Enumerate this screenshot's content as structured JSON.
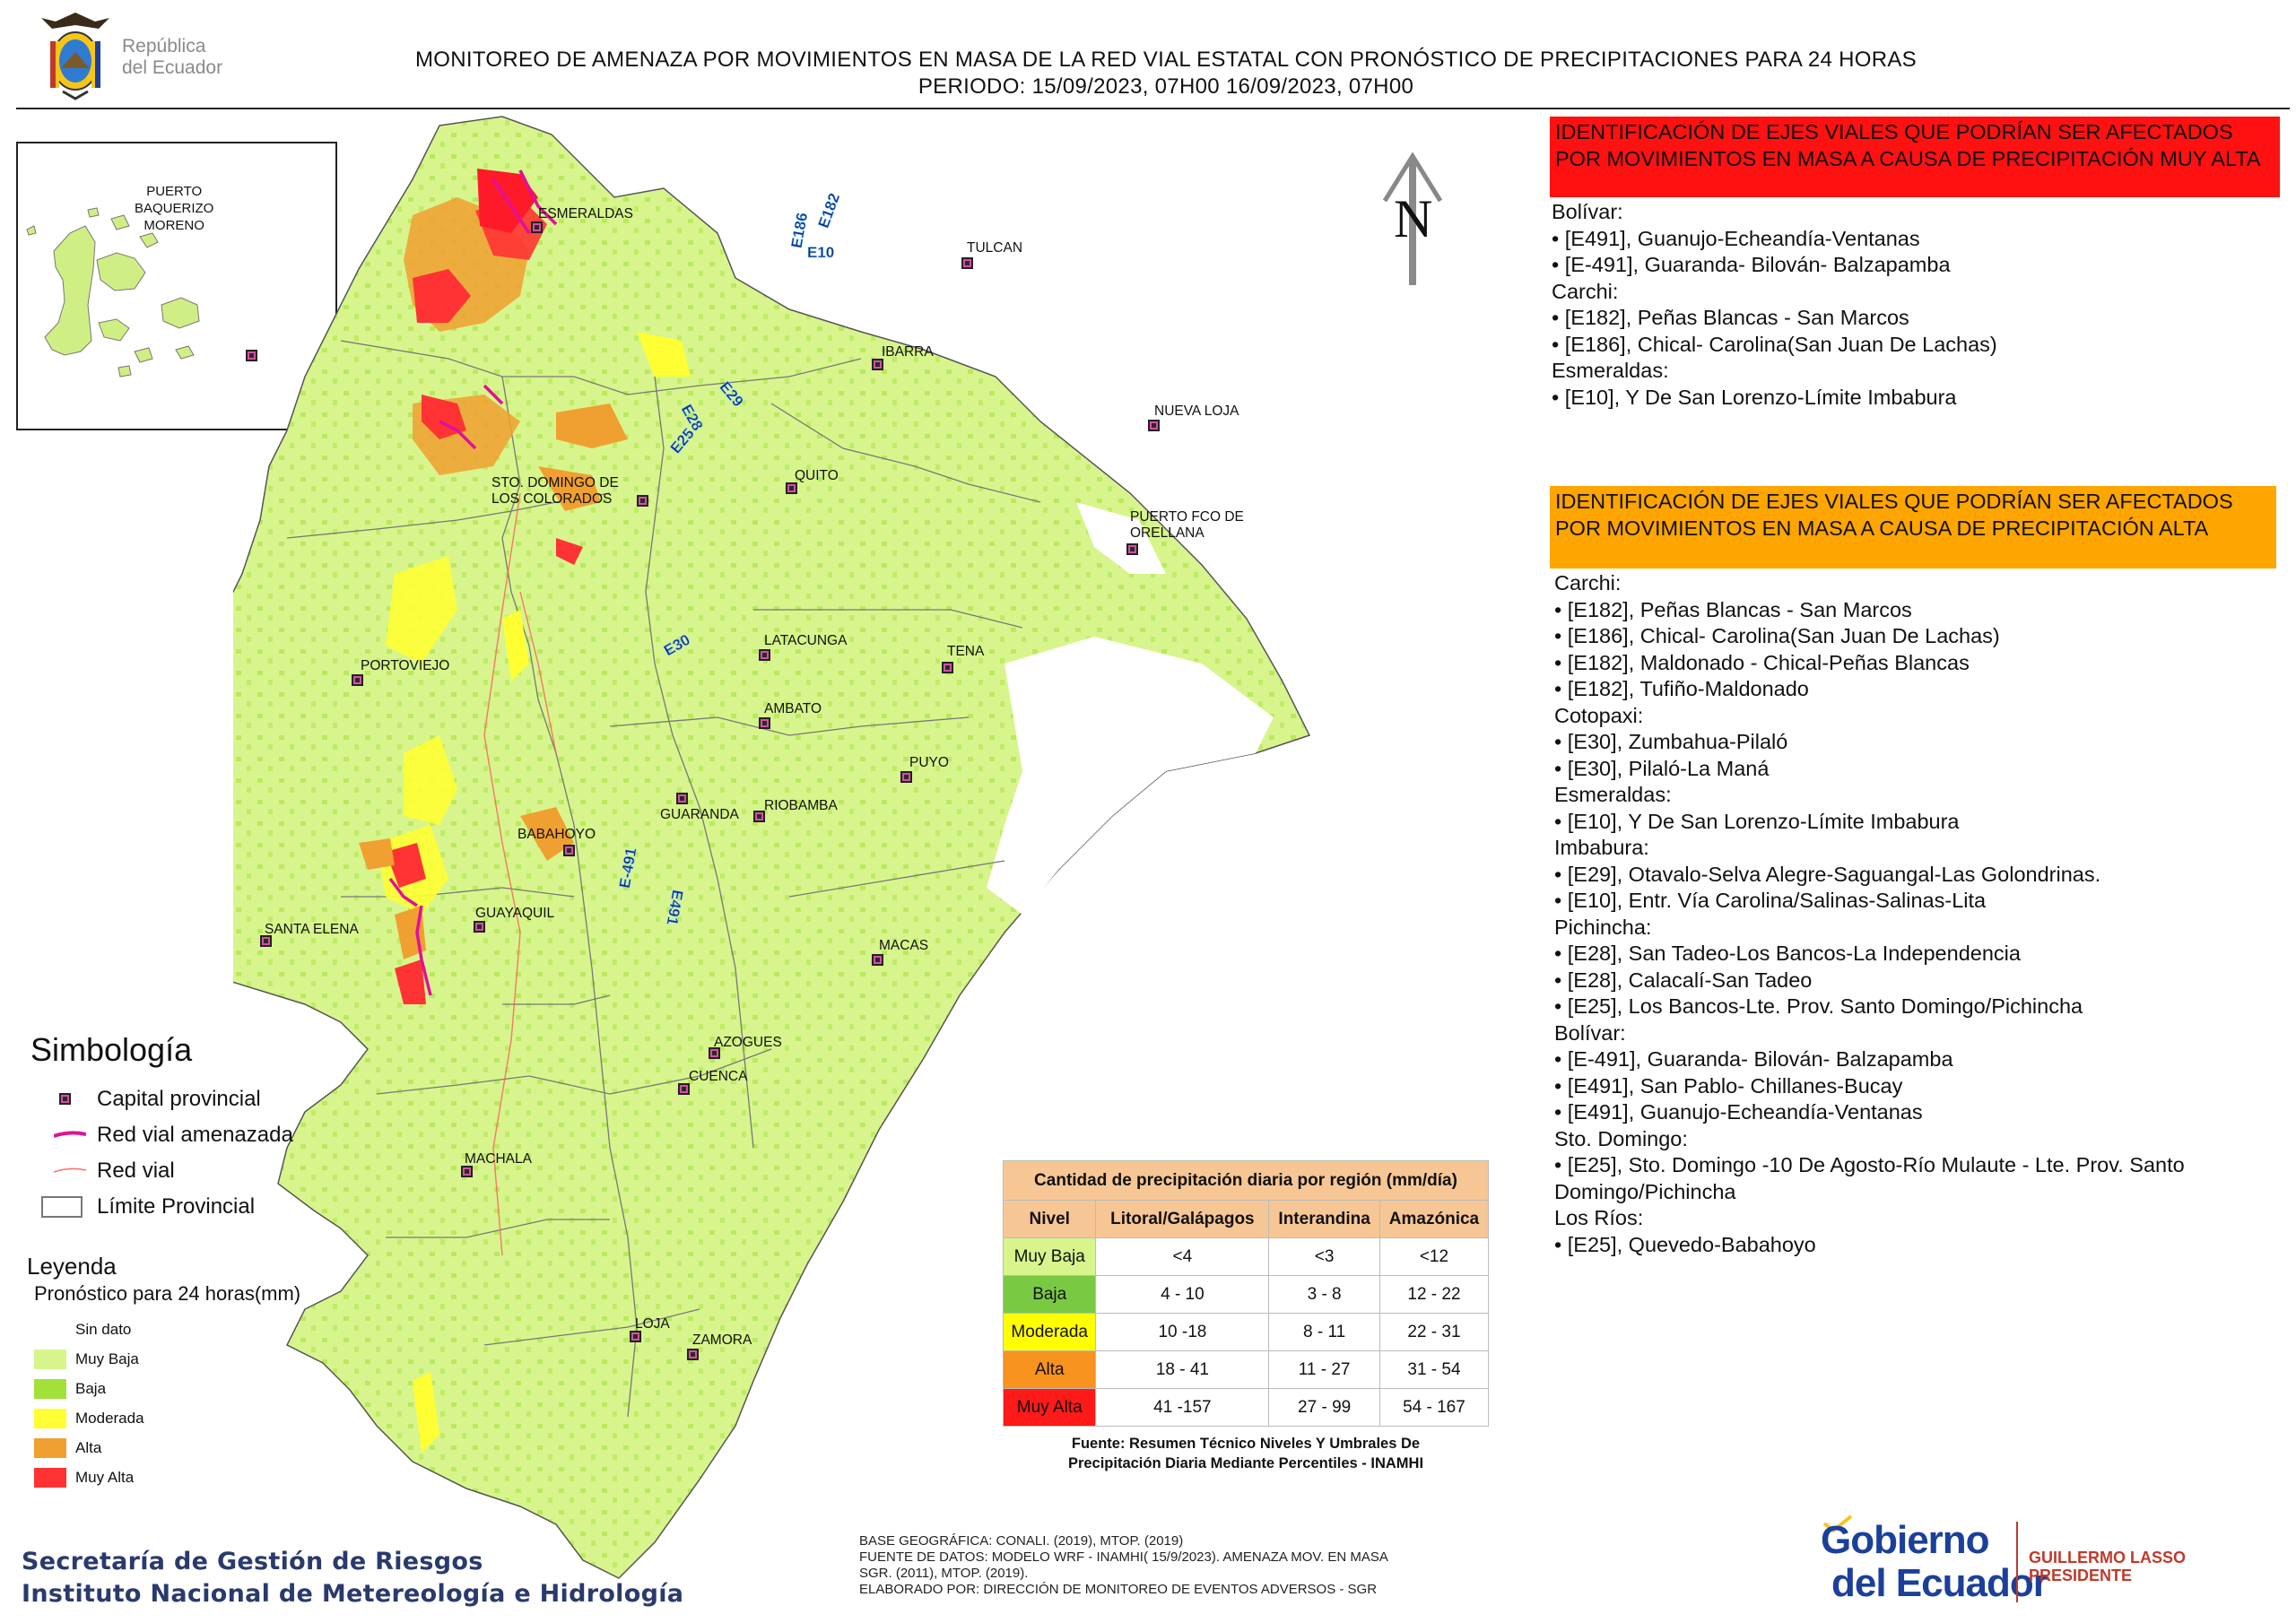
{
  "header": {
    "logo_text_line1": "República",
    "logo_text_line2": "del Ecuador",
    "title_line1": "MONITOREO DE AMENAZA POR MOVIMIENTOS EN MASA DE LA RED VIAL  ESTATAL  CON PRONÓSTICO  DE  PRECIPITACIONES PARA 24 HORAS",
    "title_line2": "PERIODO: 15/09/2023, 07H00 16/09/2023, 07H00"
  },
  "inset": {
    "place": "PUERTO BAQUERIZO MORENO",
    "place_lines": [
      "PUERTO",
      "BAQUERIZO",
      "MORENO"
    ]
  },
  "map": {
    "north_label": "N",
    "places": [
      {
        "id": "esmeraldas",
        "name": "ESMERALDAS"
      },
      {
        "id": "tulcan",
        "name": "TULCAN"
      },
      {
        "id": "ibarra",
        "name": "IBARRA"
      },
      {
        "id": "nueva-loja",
        "name": "NUEVA LOJA"
      },
      {
        "id": "quito",
        "name": "QUITO"
      },
      {
        "id": "sto-domingo",
        "name": "STO. DOMINGO DE LOS COLORADOS"
      },
      {
        "id": "orellana",
        "name": "PUERTO FCO DE ORELLANA"
      },
      {
        "id": "portoviejo",
        "name": "PORTOVIEJO"
      },
      {
        "id": "latacunga",
        "name": "LATACUNGA"
      },
      {
        "id": "tena",
        "name": "TENA"
      },
      {
        "id": "ambato",
        "name": "AMBATO"
      },
      {
        "id": "puyo",
        "name": "PUYO"
      },
      {
        "id": "guaranda",
        "name": "GUARANDA"
      },
      {
        "id": "riobamba",
        "name": "RIOBAMBA"
      },
      {
        "id": "babahoyo",
        "name": "BABAHOYO"
      },
      {
        "id": "guayaquil",
        "name": "GUAYAQUIL"
      },
      {
        "id": "santa-elena",
        "name": "SANTA ELENA"
      },
      {
        "id": "macas",
        "name": "MACAS"
      },
      {
        "id": "azogues",
        "name": "AZOGUES"
      },
      {
        "id": "cuenca",
        "name": "CUENCA"
      },
      {
        "id": "machala",
        "name": "MACHALA"
      },
      {
        "id": "loja",
        "name": "LOJA"
      },
      {
        "id": "zamora",
        "name": "ZAMORA"
      }
    ],
    "road_labels": [
      "E182",
      "E186",
      "E10",
      "E29",
      "E28",
      "E25",
      "E30",
      "E-491",
      "E491"
    ]
  },
  "right_panel": {
    "red_heading": "IDENTIFICACIÓN DE EJES VIALES QUE PODRÍAN SER AFECTADOS POR MOVIMIENTOS EN MASA A CAUSA DE PRECIPITACIÓN MUY ALTA",
    "red_list": [
      "Bolívar:",
      "• [E491], Guanujo-Echeandía-Ventanas",
      "• [E-491], Guaranda- Bilován- Balzapamba",
      "Carchi:",
      "• [E182], Peñas Blancas - San Marcos",
      "• [E186], Chical- Carolina(San Juan De Lachas)",
      "Esmeraldas:",
      "• [E10], Y De San Lorenzo-Límite Imbabura"
    ],
    "orange_heading": "IDENTIFICACIÓN DE EJES VIALES QUE PODRÍAN SER AFECTADOS POR MOVIMIENTOS EN MASA A CAUSA DE PRECIPITACIÓN  ALTA",
    "orange_list": [
      "Carchi:",
      "• [E182], Peñas Blancas - San Marcos",
      "• [E186], Chical- Carolina(San Juan De Lachas)",
      "• [E182], Maldonado - Chical-Peñas Blancas",
      "• [E182], Tufiño-Maldonado",
      "Cotopaxi:",
      "• [E30], Zumbahua-Pilaló",
      "• [E30], Pilaló-La Maná",
      "Esmeraldas:",
      "• [E10], Y De San Lorenzo-Límite Imbabura",
      "Imbabura:",
      "• [E29], Otavalo-Selva Alegre-Saguangal-Las Golondrinas.",
      "• [E10], Entr. Vía Carolina/Salinas-Salinas-Lita",
      "Pichincha:",
      "• [E28], San Tadeo-Los Bancos-La Independencia",
      "• [E28], Calacalí-San Tadeo",
      "• [E25], Los Bancos-Lte. Prov. Santo Domingo/Pichincha",
      "Bolívar:",
      "• [E-491], Guaranda- Bilován- Balzapamba",
      "• [E491], San Pablo- Chillanes-Bucay",
      "• [E491], Guanujo-Echeandía-Ventanas",
      "Sto. Domingo:",
      "• [E25], Sto. Domingo -10 De Agosto-Río Mulaute - Lte. Prov. Santo Domingo/Pichincha",
      "Los Ríos:",
      "• [E25], Quevedo-Babahoyo"
    ]
  },
  "simbologia": {
    "title": "Simbología",
    "items": [
      {
        "label": "Capital provincial",
        "symbol": "square-marker"
      },
      {
        "label": "Red vial amenazada",
        "symbol": "magenta-line"
      },
      {
        "label": "Red vial",
        "symbol": "thin-red-line"
      },
      {
        "label": "Límite Provincial",
        "symbol": "outline-box"
      }
    ]
  },
  "leyenda": {
    "title": "Leyenda",
    "subtitle": "Pronóstico para 24 horas(mm)",
    "items": [
      {
        "label": "Sin dato",
        "color": "#ffffff"
      },
      {
        "label": "Muy Baja",
        "color": "#d7f58c"
      },
      {
        "label": "Baja",
        "color": "#a2e03a"
      },
      {
        "label": "Moderada",
        "color": "#ffff33"
      },
      {
        "label": "Alta",
        "color": "#f0a030"
      },
      {
        "label": "Muy Alta",
        "color": "#ff3333"
      }
    ]
  },
  "precip_table": {
    "title": "Cantidad de precipitación diaria por región (mm/día)",
    "headers": [
      "Nivel",
      "Litoral/Galápagos",
      "Interandina",
      "Amazónica"
    ],
    "rows": [
      {
        "nivel": "Muy Baja",
        "color": "#d7f58c",
        "litoral": "<4",
        "interandina": "<3",
        "amazonica": "<12"
      },
      {
        "nivel": "Baja",
        "color": "#7ac943",
        "litoral": "4 - 10",
        "interandina": "3 - 8",
        "amazonica": "12 - 22"
      },
      {
        "nivel": "Moderada",
        "color": "#ffff00",
        "litoral": "10 -18",
        "interandina": "8 - 11",
        "amazonica": "22 - 31"
      },
      {
        "nivel": "Alta",
        "color": "#f7931e",
        "litoral": "18 - 41",
        "interandina": "11 - 27",
        "amazonica": "31 - 54"
      },
      {
        "nivel": "Muy Alta",
        "color": "#ff1a1a",
        "litoral": "41 -157",
        "interandina": "27 - 99",
        "amazonica": "54 - 167"
      }
    ],
    "source_line1": "Fuente: Resumen Técnico Niveles Y Umbrales De",
    "source_line2": "Precipitación Diaria Mediante Percentiles - INAMHI"
  },
  "footer": {
    "left_line1": "Secretaría de Gestión de Riesgos",
    "left_line2": "Instituto Nacional de Metereología e Hidrología",
    "mid_lines": [
      "BASE GEOGRÁFICA: CONALI. (2019), MTOP. (2019)",
      "FUENTE DE DATOS: MODELO WRF - INAMHI( 15/9/2023).  AMENAZA MOV. EN MASA",
      "SGR. (2011), MTOP. (2019).",
      "ELABORADO POR: DIRECCIÓN DE MONITOREO DE EVENTOS ADVERSOS - SGR"
    ],
    "logo_line1": "Gobierno",
    "logo_line2": "del Ecuador",
    "logo_name": "GUILLERMO LASSO",
    "logo_role": "PRESIDENTE"
  },
  "colors": {
    "muy_baja": "#d7f58c",
    "baja": "#a2e03a",
    "moderada": "#ffff33",
    "alta": "#f0a030",
    "muy_alta": "#ff3333",
    "threatened_road": "#e0109a",
    "road_label": "#0a2d8a"
  }
}
